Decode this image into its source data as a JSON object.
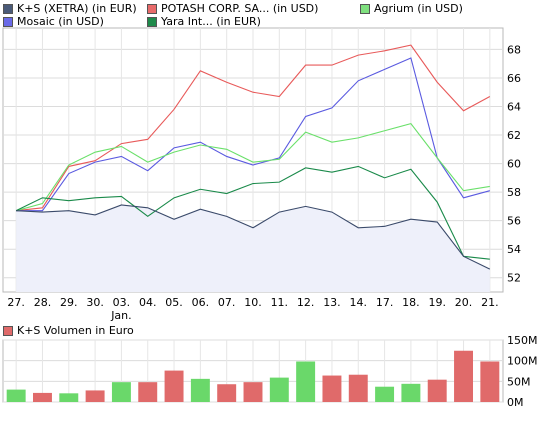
{
  "legend": [
    {
      "label": "K+S (XETRA) (in EUR)",
      "color": "#4a5a78"
    },
    {
      "label": "POTASH CORP. SA... (in USD)",
      "color": "#e86a6a"
    },
    {
      "label": "Agrium (in USD)",
      "color": "#7fe07f"
    },
    {
      "label": "Mosaic (in USD)",
      "color": "#6a6ae8"
    },
    {
      "label": "Yara Int... (in EUR)",
      "color": "#1e8a4a"
    }
  ],
  "volume_legend": {
    "label": "K+S Volumen in Euro",
    "color": "#e06a6a"
  },
  "chart_data": [
    {
      "type": "line",
      "categories": [
        "27.",
        "28.",
        "29.",
        "30.",
        "03.",
        "04.",
        "05.",
        "06.",
        "07.",
        "10.",
        "11.",
        "12.",
        "13.",
        "14.",
        "17.",
        "18.",
        "19.",
        "20.",
        "21."
      ],
      "category_sublabels": {
        "03.": "Jan."
      },
      "ylim": [
        51,
        69.5
      ],
      "yticks": [
        52,
        54,
        56,
        58,
        60,
        62,
        64,
        66,
        68
      ],
      "grid": true,
      "series": [
        {
          "name": "K+S (XETRA) (in EUR)",
          "color": "#3a4a6a",
          "fill": "#eef0fa",
          "values": [
            56.7,
            56.6,
            56.7,
            56.4,
            57.1,
            56.9,
            56.1,
            56.8,
            56.3,
            55.5,
            56.6,
            57.0,
            56.6,
            55.5,
            55.6,
            56.1,
            55.9,
            53.5,
            52.6
          ]
        },
        {
          "name": "POTASH CORP. SA... (in USD)",
          "color": "#e85a5a",
          "values": [
            56.7,
            56.9,
            59.8,
            60.2,
            61.4,
            61.7,
            63.8,
            66.5,
            65.7,
            65.0,
            64.7,
            66.9,
            66.9,
            67.6,
            67.9,
            68.3,
            65.7,
            63.7,
            64.7
          ]
        },
        {
          "name": "Agrium (in USD)",
          "color": "#6ae06a",
          "values": [
            56.7,
            57.2,
            59.9,
            60.8,
            61.2,
            60.1,
            60.8,
            61.3,
            61.0,
            60.1,
            60.3,
            62.2,
            61.5,
            61.8,
            62.3,
            62.8,
            60.4,
            58.1,
            58.4
          ]
        },
        {
          "name": "Mosaic (in USD)",
          "color": "#5a5ae0",
          "values": [
            56.7,
            56.7,
            59.3,
            60.1,
            60.5,
            59.5,
            61.1,
            61.5,
            60.5,
            59.9,
            60.4,
            63.3,
            63.9,
            65.8,
            66.6,
            67.4,
            60.4,
            57.6,
            58.1
          ]
        },
        {
          "name": "Yara Int... (in EUR)",
          "color": "#1a8a4a",
          "values": [
            56.7,
            57.6,
            57.4,
            57.6,
            57.7,
            56.3,
            57.6,
            58.2,
            57.9,
            58.6,
            58.7,
            59.7,
            59.4,
            59.8,
            59.0,
            59.6,
            57.3,
            53.5,
            53.3
          ]
        }
      ]
    },
    {
      "type": "bar",
      "title": "K+S Volumen in Euro",
      "categories": [
        "27.",
        "28.",
        "29.",
        "30.",
        "03.",
        "04.",
        "05.",
        "06.",
        "07.",
        "10.",
        "11.",
        "12.",
        "13.",
        "14.",
        "17.",
        "18.",
        "19.",
        "20.",
        "21."
      ],
      "values": [
        30,
        22,
        21,
        28,
        48,
        48,
        76,
        56,
        43,
        48,
        59,
        98,
        64,
        66,
        37,
        44,
        54,
        124,
        98
      ],
      "colors": [
        "green",
        "red",
        "green",
        "red",
        "green",
        "red",
        "red",
        "green",
        "red",
        "red",
        "green",
        "green",
        "red",
        "red",
        "green",
        "green",
        "red",
        "red",
        "red"
      ],
      "palette": {
        "green": "#6ad86a",
        "red": "#e06a6a"
      },
      "ylim": [
        0,
        150
      ],
      "yticks": [
        {
          "value": 0,
          "label": "0M"
        },
        {
          "value": 50,
          "label": "50M"
        },
        {
          "value": 100,
          "label": "100M"
        },
        {
          "value": 150,
          "label": "150M"
        }
      ]
    }
  ]
}
